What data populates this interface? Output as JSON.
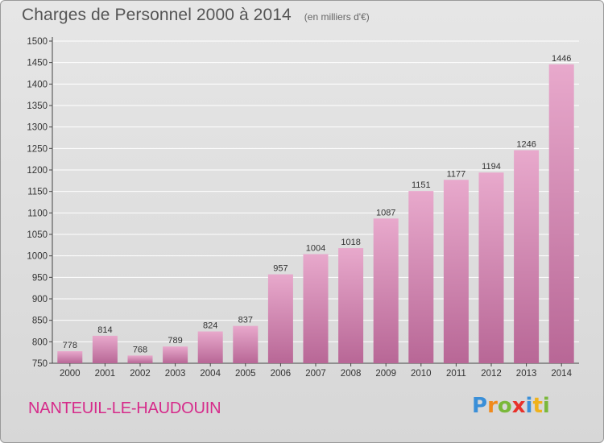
{
  "title": "Charges de Personnel 2000 à 2014",
  "subtitle": "(en milliers d'€)",
  "commune": "NANTEUIL-LE-HAUDOUIN",
  "logo": {
    "text": "Proxiti",
    "letters": [
      {
        "ch": "P",
        "color": "#3a8fd8"
      },
      {
        "ch": "r",
        "color": "#f08a1c"
      },
      {
        "ch": "o",
        "color": "#7ab83a"
      },
      {
        "ch": "x",
        "color": "#e8312a"
      },
      {
        "ch": "i",
        "color": "#3a8fd8"
      },
      {
        "ch": "t",
        "color": "#f0b21c"
      },
      {
        "ch": "i",
        "color": "#7ab83a"
      }
    ]
  },
  "colors": {
    "bar_top": "#e8a9cc",
    "bar_bottom": "#b86796",
    "grid": "#ffffff",
    "commune_text": "#d62a8a"
  },
  "chart_data": {
    "type": "bar",
    "title": "Charges de Personnel 2000 à 2014",
    "subtitle": "(en milliers d'€)",
    "categories": [
      "2000",
      "2001",
      "2002",
      "2003",
      "2004",
      "2005",
      "2006",
      "2007",
      "2008",
      "2009",
      "2010",
      "2011",
      "2012",
      "2013",
      "2014"
    ],
    "values": [
      778,
      814,
      768,
      789,
      824,
      837,
      957,
      1004,
      1018,
      1087,
      1151,
      1177,
      1194,
      1246,
      1446
    ],
    "ylim": [
      750,
      1500
    ],
    "yticks": [
      750,
      800,
      850,
      900,
      950,
      1000,
      1050,
      1100,
      1150,
      1200,
      1250,
      1300,
      1350,
      1400,
      1450,
      1500
    ],
    "grid": true,
    "xlabel": "",
    "ylabel": ""
  }
}
